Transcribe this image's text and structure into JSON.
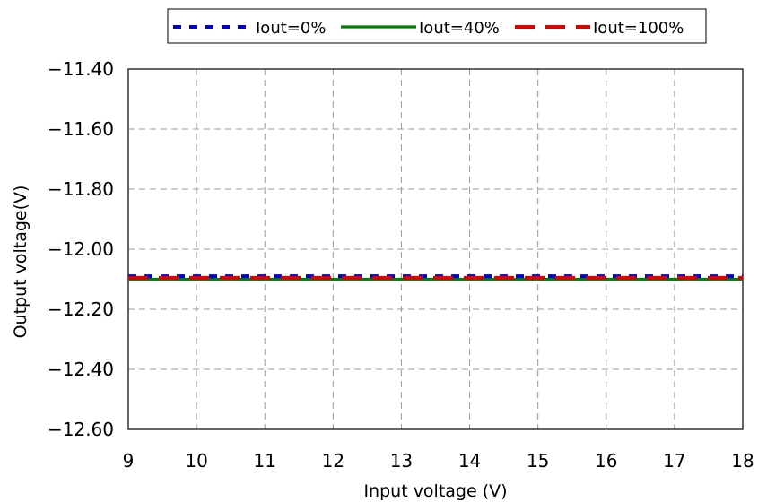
{
  "chart_data": {
    "type": "line",
    "title": "",
    "xlabel": "Input voltage (V)",
    "ylabel": "Output voltage(V)",
    "xlim": [
      9,
      18
    ],
    "ylim": [
      -12.6,
      -11.4
    ],
    "x_ticks": [
      "9",
      "10",
      "11",
      "12",
      "13",
      "14",
      "15",
      "16",
      "17",
      "18"
    ],
    "y_ticks": [
      "-11.40",
      "-11.60",
      "-11.80",
      "-12.00",
      "-12.20",
      "-12.40",
      "-12.60"
    ],
    "grid": true,
    "legend_position": "top",
    "x": [
      9,
      10,
      11,
      12,
      13,
      14,
      15,
      16,
      17,
      18
    ],
    "series": [
      {
        "name": "Iout=0%",
        "color": "#0000cc",
        "style": "dotted",
        "values": [
          -12.09,
          -12.09,
          -12.09,
          -12.09,
          -12.09,
          -12.09,
          -12.09,
          -12.09,
          -12.09,
          -12.09
        ]
      },
      {
        "name": "Iout=40%",
        "color": "#008000",
        "style": "solid",
        "values": [
          -12.1,
          -12.1,
          -12.1,
          -12.1,
          -12.1,
          -12.1,
          -12.1,
          -12.1,
          -12.1,
          -12.1
        ]
      },
      {
        "name": "Iout=100%",
        "color": "#e00000",
        "style": "dashed",
        "values": [
          -12.095,
          -12.095,
          -12.095,
          -12.095,
          -12.095,
          -12.095,
          -12.095,
          -12.095,
          -12.095,
          -12.095
        ]
      }
    ]
  }
}
